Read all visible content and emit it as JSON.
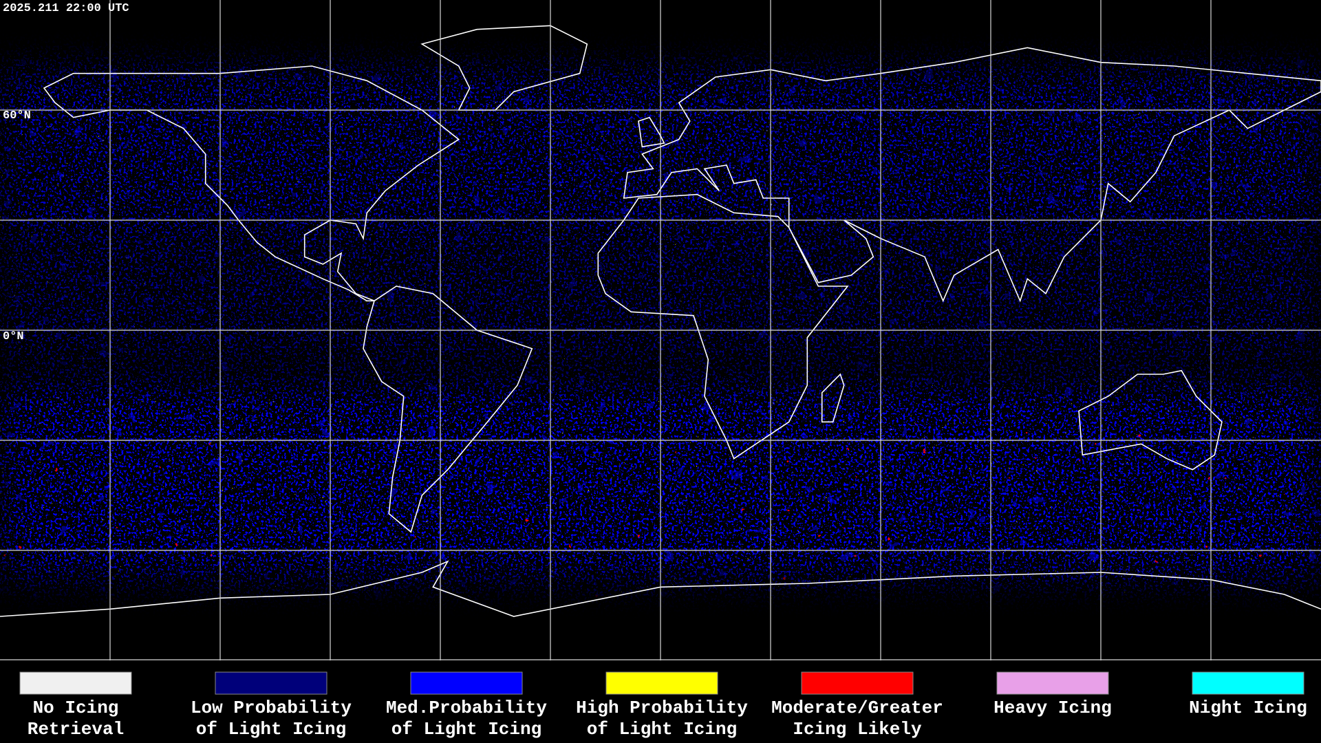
{
  "header": {
    "timestamp": "2025.211 22:00 UTC"
  },
  "map": {
    "latitude_labels": [
      "60°N",
      "0°N"
    ]
  },
  "legend": {
    "items": [
      {
        "label_lines": [
          "No Icing",
          "Retrieval"
        ],
        "color": "#f0f0f0"
      },
      {
        "label_lines": [
          "Low Probability",
          "of Light Icing"
        ],
        "color": "#00007a"
      },
      {
        "label_lines": [
          "Med.Probability",
          "of Light Icing"
        ],
        "color": "#0000ff"
      },
      {
        "label_lines": [
          "High Probability",
          "of Light Icing"
        ],
        "color": "#ffff00"
      },
      {
        "label_lines": [
          "Moderate/Greater",
          "Icing Likely"
        ],
        "color": "#ff0000"
      },
      {
        "label_lines": [
          "Heavy Icing"
        ],
        "color": "#e8a0e8"
      },
      {
        "label_lines": [
          "Night Icing"
        ],
        "color": "#00ffff"
      }
    ]
  }
}
